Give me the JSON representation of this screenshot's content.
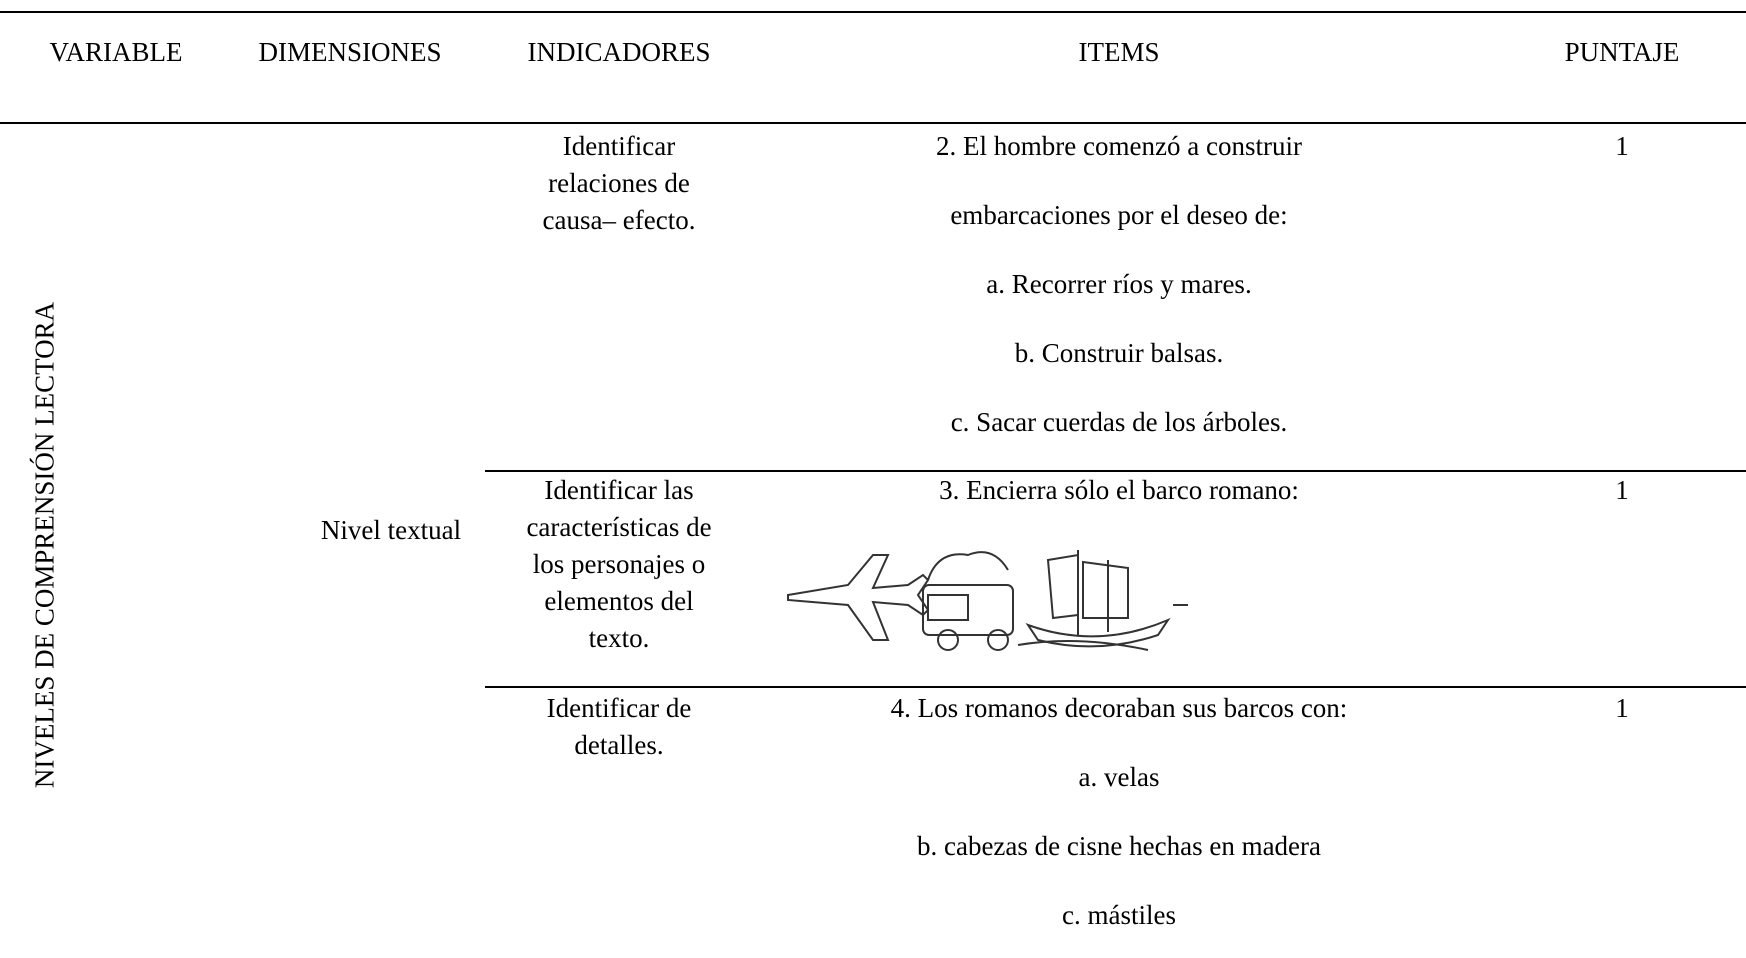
{
  "table": {
    "header": [
      "VARIABLE",
      "DIMENSIONES",
      "INDICADORES",
      "ITEMS",
      "PUNTAJE"
    ],
    "variable": "NIVELES DE COMPRENSIÓN LECTORA",
    "dimension": "Nivel textual",
    "rows": [
      {
        "indicator": "Identificar relaciones de causa– efecto.",
        "items": [
          "2. El hombre comenzó a construir",
          "embarcaciones por el deseo de:",
          "a. Recorrer ríos y mares.",
          "b. Construir balsas.",
          "c. Sacar cuerdas de los árboles."
        ],
        "score": "1"
      },
      {
        "indicator": "Identificar las características de los personajes o elementos del texto.",
        "items": [
          "3. Encierra sólo el barco romano:"
        ],
        "score": "1"
      },
      {
        "indicator": "Identificar  de detalles.",
        "items": [
          "4. Los romanos decoraban sus barcos con:",
          "a. velas",
          "b. cabezas de cisne hechas en madera",
          "c. mástiles"
        ],
        "score": "1"
      }
    ]
  }
}
